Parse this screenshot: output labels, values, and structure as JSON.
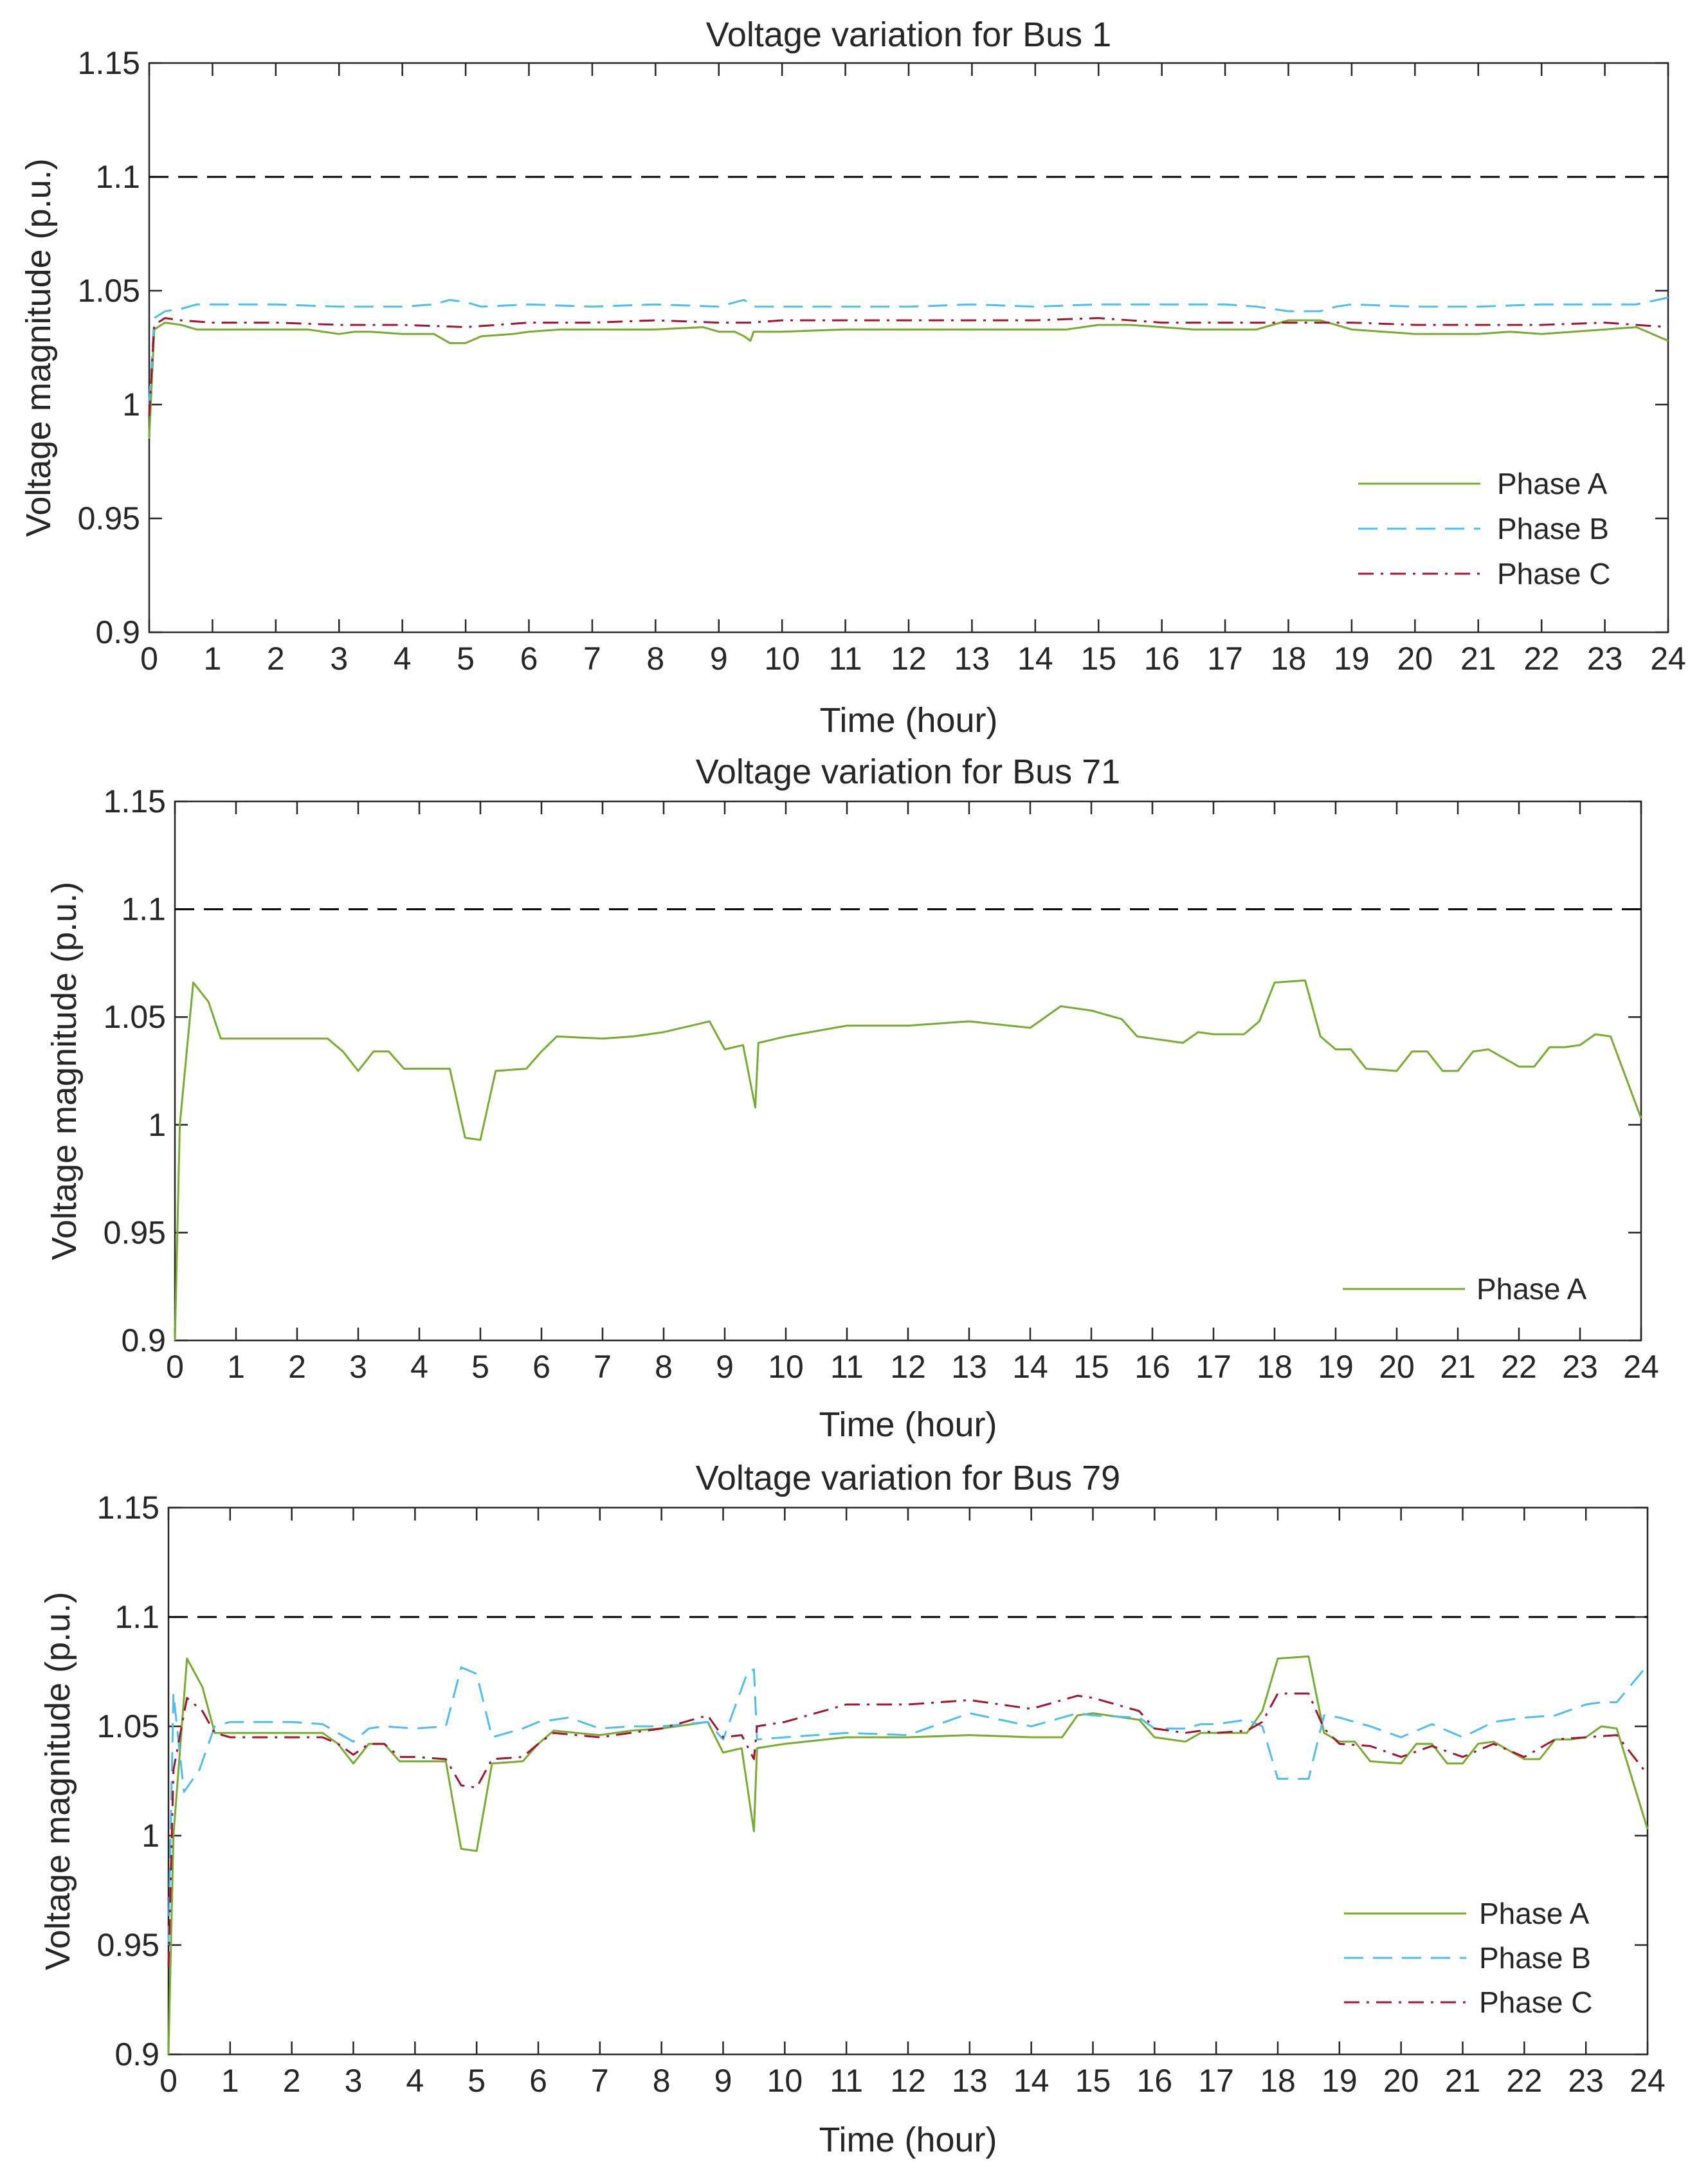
{
  "chart_data": [
    {
      "type": "line",
      "title": "Voltage variation for Bus 1",
      "xlabel": "Time (hour)",
      "ylabel": "Voltage magnitude (p.u.)",
      "xlim": [
        0,
        24
      ],
      "ylim": [
        0.9,
        1.15
      ],
      "xticks": [
        0,
        1,
        2,
        3,
        4,
        5,
        6,
        7,
        8,
        9,
        10,
        11,
        12,
        13,
        14,
        15,
        16,
        17,
        18,
        19,
        20,
        21,
        22,
        23,
        24
      ],
      "yticks": [
        0.9,
        0.95,
        1,
        1.05,
        1.1,
        1.15
      ],
      "ytick_labels": [
        "0.9",
        "0.95",
        "1",
        "1.05",
        "1.1",
        "1.15"
      ],
      "grid": false,
      "legend_position": "bottom-right",
      "limit_line": {
        "y": 1.1,
        "color": "#000000",
        "style": "dashed"
      },
      "series": [
        {
          "name": "Phase A",
          "color": "#77ac30",
          "style": "solid",
          "x": [
            0,
            0.08,
            0.25,
            0.5,
            0.75,
            1,
            2,
            2.5,
            3,
            3.25,
            3.5,
            4,
            4.5,
            4.75,
            5,
            5.25,
            5.75,
            6,
            6.5,
            7,
            7.5,
            8,
            8.75,
            9,
            9.25,
            9.4,
            9.5,
            9.55,
            10,
            11,
            12,
            13,
            14,
            14.5,
            15,
            15.5,
            16,
            16.5,
            17,
            17.5,
            18,
            18.5,
            18.75,
            19,
            19.5,
            20,
            20.5,
            21,
            21.5,
            22,
            22.5,
            23,
            23.5,
            24
          ],
          "y": [
            0.985,
            1.033,
            1.036,
            1.035,
            1.033,
            1.033,
            1.033,
            1.033,
            1.031,
            1.032,
            1.032,
            1.031,
            1.031,
            1.027,
            1.027,
            1.03,
            1.031,
            1.032,
            1.033,
            1.033,
            1.033,
            1.033,
            1.034,
            1.032,
            1.032,
            1.03,
            1.028,
            1.032,
            1.032,
            1.033,
            1.033,
            1.033,
            1.033,
            1.033,
            1.035,
            1.035,
            1.034,
            1.033,
            1.033,
            1.033,
            1.037,
            1.037,
            1.035,
            1.033,
            1.032,
            1.031,
            1.031,
            1.031,
            1.032,
            1.031,
            1.032,
            1.033,
            1.034,
            1.028
          ]
        },
        {
          "name": "Phase B",
          "color": "#4dbeee",
          "style": "dashed",
          "x": [
            0,
            0.08,
            0.25,
            0.5,
            0.75,
            1,
            2,
            3,
            4,
            4.5,
            4.75,
            5,
            5.25,
            6,
            7,
            8,
            9,
            9.4,
            9.5,
            9.55,
            10,
            11,
            12,
            13,
            14,
            15,
            16,
            17,
            17.5,
            18,
            18.5,
            18.75,
            19,
            20,
            21,
            22,
            23,
            23.5,
            24
          ],
          "y": [
            1.0,
            1.038,
            1.041,
            1.042,
            1.044,
            1.044,
            1.044,
            1.043,
            1.043,
            1.044,
            1.046,
            1.045,
            1.043,
            1.044,
            1.043,
            1.044,
            1.043,
            1.046,
            1.044,
            1.043,
            1.043,
            1.043,
            1.043,
            1.044,
            1.043,
            1.044,
            1.044,
            1.044,
            1.043,
            1.041,
            1.041,
            1.043,
            1.044,
            1.043,
            1.043,
            1.044,
            1.044,
            1.044,
            1.047
          ]
        },
        {
          "name": "Phase C",
          "color": "#a2142f",
          "style": "dashdot",
          "x": [
            0,
            0.08,
            0.25,
            0.5,
            1,
            2,
            3,
            4,
            5,
            6,
            7,
            8,
            9,
            9.5,
            10,
            11,
            12,
            13,
            14,
            15,
            16,
            17,
            18,
            19,
            20,
            21,
            22,
            23,
            24
          ],
          "y": [
            0.995,
            1.035,
            1.038,
            1.037,
            1.036,
            1.036,
            1.035,
            1.035,
            1.034,
            1.036,
            1.036,
            1.037,
            1.036,
            1.036,
            1.037,
            1.037,
            1.037,
            1.037,
            1.037,
            1.038,
            1.036,
            1.036,
            1.036,
            1.036,
            1.035,
            1.035,
            1.035,
            1.036,
            1.034
          ]
        }
      ]
    },
    {
      "type": "line",
      "title": "Voltage variation for Bus 71",
      "xlabel": "Time (hour)",
      "ylabel": "Voltage magnitude (p.u.)",
      "xlim": [
        0,
        24
      ],
      "ylim": [
        0.9,
        1.15
      ],
      "xticks": [
        0,
        1,
        2,
        3,
        4,
        5,
        6,
        7,
        8,
        9,
        10,
        11,
        12,
        13,
        14,
        15,
        16,
        17,
        18,
        19,
        20,
        21,
        22,
        23,
        24
      ],
      "yticks": [
        0.9,
        0.95,
        1,
        1.05,
        1.1,
        1.15
      ],
      "ytick_labels": [
        "0.9",
        "0.95",
        "1",
        "1.05",
        "1.1",
        "1.15"
      ],
      "grid": false,
      "legend_position": "bottom-right",
      "limit_line": {
        "y": 1.1,
        "color": "#000000",
        "style": "dashed"
      },
      "series": [
        {
          "name": "Phase A",
          "color": "#77ac30",
          "style": "solid",
          "x": [
            0,
            0.08,
            0.3,
            0.55,
            0.75,
            1,
            2,
            2.5,
            2.75,
            3,
            3.25,
            3.5,
            3.75,
            4,
            4.5,
            4.75,
            5,
            5.25,
            5.75,
            6,
            6.25,
            7,
            7.5,
            8,
            8.75,
            9,
            9.3,
            9.5,
            9.55,
            10,
            11,
            12,
            13,
            14,
            14.5,
            14.75,
            15,
            15.5,
            15.75,
            16,
            16.5,
            16.75,
            17,
            17.5,
            17.75,
            18,
            18.5,
            18.75,
            19,
            19.25,
            19.5,
            20,
            20.25,
            20.5,
            20.75,
            21,
            21.25,
            21.5,
            22,
            22.25,
            22.5,
            22.75,
            23,
            23.25,
            23.5,
            24
          ],
          "y": [
            0.9,
            1.0,
            1.066,
            1.057,
            1.04,
            1.04,
            1.04,
            1.04,
            1.034,
            1.025,
            1.034,
            1.034,
            1.026,
            1.026,
            1.026,
            0.994,
            0.993,
            1.025,
            1.026,
            1.034,
            1.041,
            1.04,
            1.041,
            1.043,
            1.048,
            1.035,
            1.037,
            1.008,
            1.038,
            1.041,
            1.046,
            1.046,
            1.048,
            1.045,
            1.055,
            1.054,
            1.053,
            1.049,
            1.041,
            1.04,
            1.038,
            1.043,
            1.042,
            1.042,
            1.048,
            1.066,
            1.067,
            1.041,
            1.035,
            1.035,
            1.026,
            1.025,
            1.034,
            1.034,
            1.025,
            1.025,
            1.034,
            1.035,
            1.027,
            1.027,
            1.036,
            1.036,
            1.037,
            1.042,
            1.041,
            1.003
          ]
        }
      ]
    },
    {
      "type": "line",
      "title": "Voltage variation for Bus 79",
      "xlabel": "Time (hour)",
      "ylabel": "Voltage magnitude (p.u.)",
      "xlim": [
        0,
        24
      ],
      "ylim": [
        0.9,
        1.15
      ],
      "xticks": [
        0,
        1,
        2,
        3,
        4,
        5,
        6,
        7,
        8,
        9,
        10,
        11,
        12,
        13,
        14,
        15,
        16,
        17,
        18,
        19,
        20,
        21,
        22,
        23,
        24
      ],
      "yticks": [
        0.9,
        0.95,
        1,
        1.05,
        1.1,
        1.15
      ],
      "ytick_labels": [
        "0.9",
        "0.95",
        "1",
        "1.05",
        "1.1",
        "1.15"
      ],
      "grid": false,
      "legend_position": "bottom-right",
      "limit_line": {
        "y": 1.1,
        "color": "#000000",
        "style": "dashed"
      },
      "series": [
        {
          "name": "Phase A",
          "color": "#77ac30",
          "style": "solid",
          "x": [
            0,
            0.08,
            0.3,
            0.55,
            0.75,
            1,
            2,
            2.5,
            2.75,
            3,
            3.25,
            3.5,
            3.75,
            4,
            4.5,
            4.75,
            5,
            5.25,
            5.75,
            6,
            6.25,
            7,
            7.5,
            8,
            8.75,
            9,
            9.3,
            9.5,
            9.55,
            10,
            11,
            12,
            13,
            14,
            14.5,
            14.75,
            15,
            15.5,
            15.75,
            16,
            16.5,
            16.75,
            17,
            17.5,
            17.75,
            18,
            18.5,
            18.75,
            19,
            19.25,
            19.5,
            20,
            20.25,
            20.5,
            20.75,
            21,
            21.25,
            21.5,
            22,
            22.25,
            22.5,
            22.75,
            23,
            23.25,
            23.5,
            24
          ],
          "y": [
            0.9,
            1.0,
            1.081,
            1.068,
            1.047,
            1.047,
            1.047,
            1.047,
            1.042,
            1.033,
            1.042,
            1.042,
            1.034,
            1.034,
            1.034,
            0.994,
            0.993,
            1.033,
            1.034,
            1.042,
            1.048,
            1.046,
            1.048,
            1.049,
            1.052,
            1.038,
            1.04,
            1.002,
            1.04,
            1.042,
            1.045,
            1.045,
            1.046,
            1.045,
            1.045,
            1.055,
            1.056,
            1.054,
            1.053,
            1.045,
            1.043,
            1.047,
            1.047,
            1.047,
            1.057,
            1.081,
            1.082,
            1.047,
            1.043,
            1.043,
            1.034,
            1.033,
            1.042,
            1.042,
            1.033,
            1.033,
            1.042,
            1.043,
            1.035,
            1.035,
            1.044,
            1.044,
            1.045,
            1.05,
            1.049,
            1.003
          ]
        },
        {
          "name": "Phase B",
          "color": "#4dbeee",
          "style": "dashed",
          "x": [
            0,
            0.08,
            0.25,
            0.5,
            0.75,
            1,
            2,
            2.5,
            2.75,
            3,
            3.25,
            3.5,
            4,
            4.5,
            4.75,
            5,
            5.25,
            5.75,
            6,
            6.5,
            7,
            7.5,
            8,
            8.75,
            9,
            9.4,
            9.5,
            9.55,
            10,
            11,
            12,
            13,
            14,
            14.75,
            15,
            15.75,
            16,
            16.5,
            16.75,
            17,
            17.5,
            17.75,
            18,
            18.5,
            18.75,
            19,
            19.5,
            20,
            20.5,
            21,
            21.5,
            22,
            22.5,
            23,
            23.25,
            23.5,
            24
          ],
          "y": [
            0.95,
            1.065,
            1.02,
            1.03,
            1.05,
            1.052,
            1.052,
            1.051,
            1.047,
            1.043,
            1.049,
            1.05,
            1.049,
            1.05,
            1.077,
            1.074,
            1.045,
            1.049,
            1.052,
            1.054,
            1.049,
            1.05,
            1.05,
            1.052,
            1.044,
            1.075,
            1.076,
            1.044,
            1.045,
            1.047,
            1.046,
            1.056,
            1.05,
            1.056,
            1.055,
            1.054,
            1.049,
            1.049,
            1.051,
            1.051,
            1.053,
            1.05,
            1.026,
            1.026,
            1.055,
            1.054,
            1.05,
            1.045,
            1.051,
            1.045,
            1.052,
            1.054,
            1.055,
            1.06,
            1.061,
            1.061,
            1.078
          ]
        },
        {
          "name": "Phase C",
          "color": "#a2142f",
          "style": "dashdot",
          "x": [
            0,
            0.08,
            0.3,
            0.55,
            0.75,
            1,
            2,
            2.5,
            2.75,
            3,
            3.25,
            3.5,
            3.75,
            4,
            4.5,
            4.75,
            5,
            5.25,
            5.75,
            6,
            6.25,
            7,
            8,
            8.75,
            9,
            9.3,
            9.5,
            9.55,
            10,
            11,
            12,
            13,
            14,
            14.75,
            15,
            15.75,
            16,
            16.5,
            16.75,
            17,
            17.5,
            17.75,
            18,
            18.5,
            18.75,
            19,
            19.5,
            20,
            20.5,
            21,
            21.5,
            22,
            22.5,
            23,
            23.5,
            24
          ],
          "y": [
            0.94,
            1.03,
            1.063,
            1.057,
            1.047,
            1.045,
            1.045,
            1.045,
            1.042,
            1.037,
            1.042,
            1.042,
            1.036,
            1.036,
            1.035,
            1.023,
            1.022,
            1.035,
            1.036,
            1.042,
            1.047,
            1.045,
            1.049,
            1.055,
            1.045,
            1.046,
            1.035,
            1.05,
            1.052,
            1.06,
            1.06,
            1.062,
            1.058,
            1.064,
            1.063,
            1.057,
            1.049,
            1.047,
            1.048,
            1.047,
            1.048,
            1.052,
            1.065,
            1.065,
            1.049,
            1.042,
            1.041,
            1.036,
            1.041,
            1.036,
            1.042,
            1.036,
            1.044,
            1.045,
            1.046,
            1.028
          ]
        }
      ]
    }
  ]
}
